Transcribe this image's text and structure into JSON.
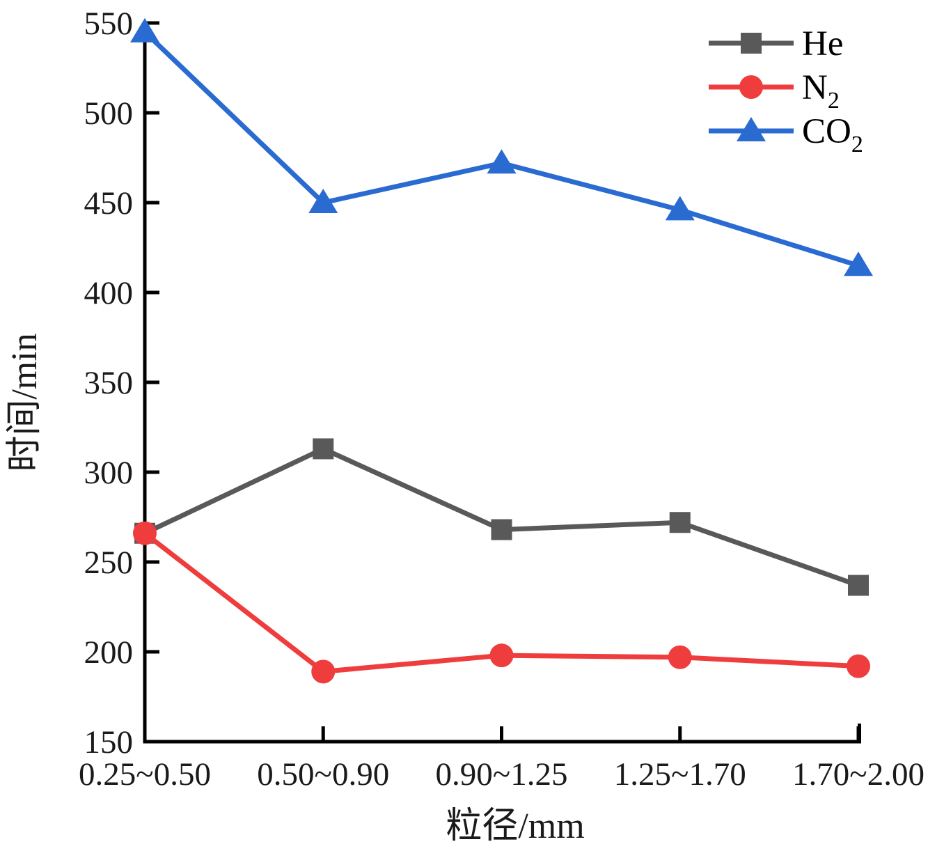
{
  "chart_data": {
    "type": "line",
    "title": "",
    "xlabel": "粒径/mm",
    "ylabel": "时间/min",
    "categories": [
      "0.25~0.50",
      "0.50~0.90",
      "0.90~1.25",
      "1.25~1.70",
      "1.70~2.00"
    ],
    "series": [
      {
        "name": "He",
        "label_main": "He",
        "label_sub": "",
        "color": "#595959",
        "marker": "square",
        "values": [
          266,
          313,
          268,
          272,
          237
        ]
      },
      {
        "name": "N2",
        "label_main": "N",
        "label_sub": "2",
        "color": "#EF3D3D",
        "marker": "circle",
        "values": [
          266,
          189,
          198,
          197,
          192
        ]
      },
      {
        "name": "CO2",
        "label_main": "CO",
        "label_sub": "2",
        "color": "#2A6BD2",
        "marker": "triangle",
        "values": [
          545,
          450,
          472,
          446,
          415
        ]
      }
    ],
    "ylim": [
      150,
      550
    ],
    "yticks": [
      150,
      200,
      250,
      300,
      350,
      400,
      450,
      500,
      550
    ],
    "grid": false,
    "legend_position": "top-right",
    "axis_color": "#000000",
    "background_color": "#ffffff"
  }
}
